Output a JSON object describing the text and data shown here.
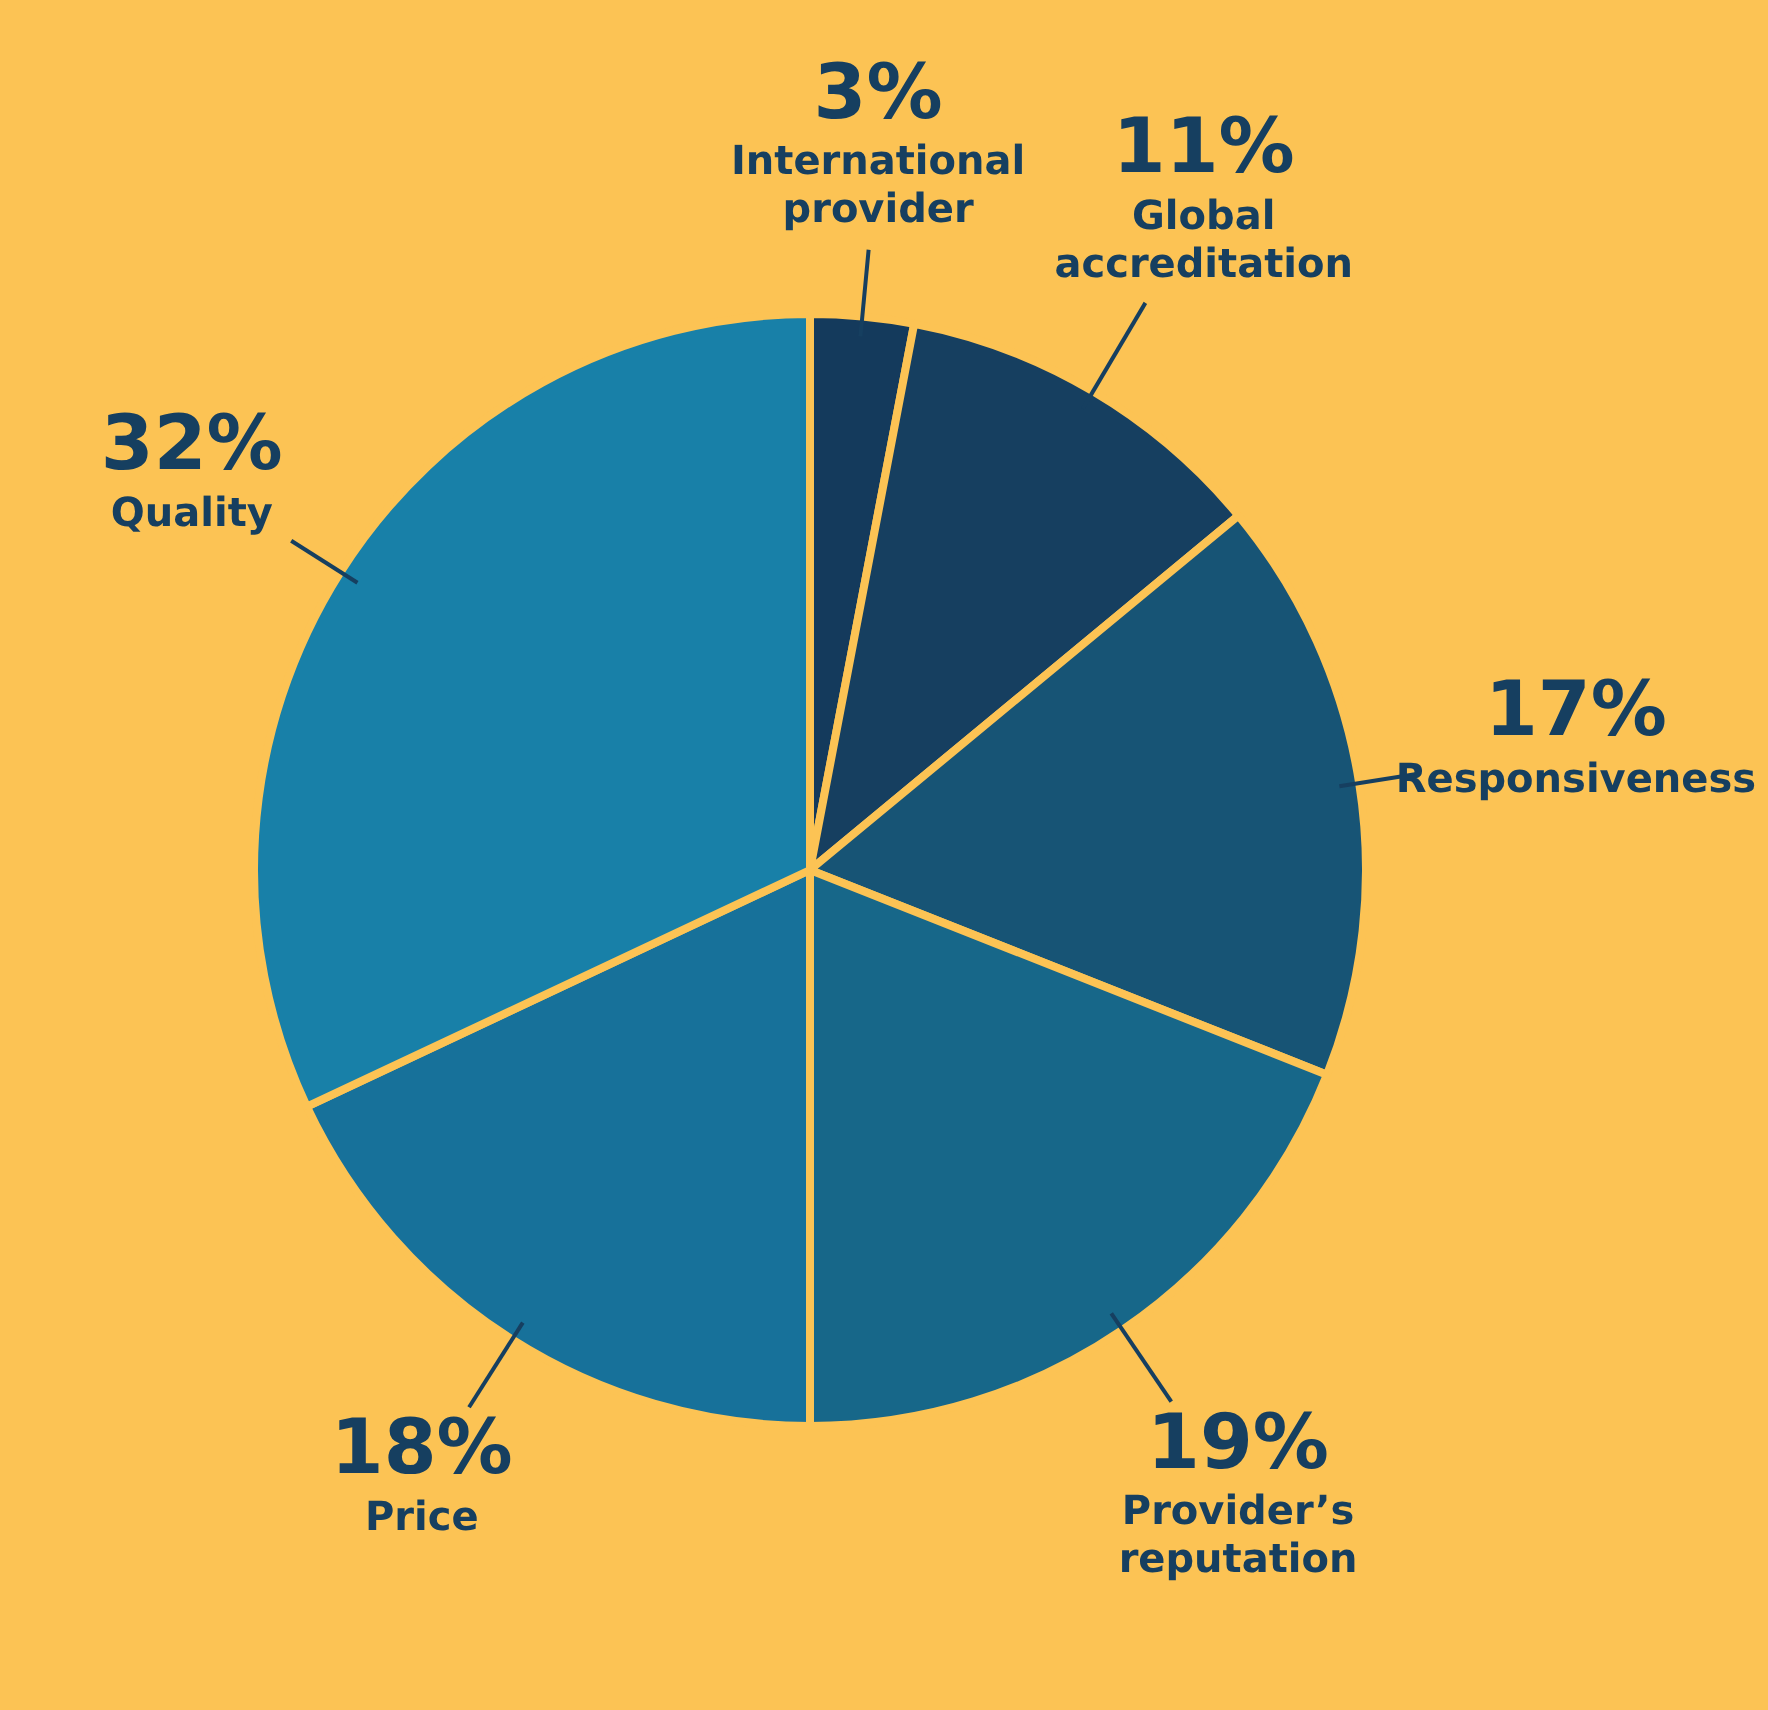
{
  "chart_data": {
    "type": "pie",
    "categories": [
      "International provider",
      "Global accreditation",
      "Responsiveness",
      "Provider’s reputation",
      "Price",
      "Quality"
    ],
    "values": [
      3,
      11,
      17,
      19,
      18,
      32
    ],
    "value_labels": [
      "3%",
      "11%",
      "17%",
      "19%",
      "18%",
      "32%"
    ],
    "colors": [
      "#143a5c",
      "#163f60",
      "#175475",
      "#176789",
      "#17719a",
      "#1880a8"
    ],
    "legend": false
  }
}
